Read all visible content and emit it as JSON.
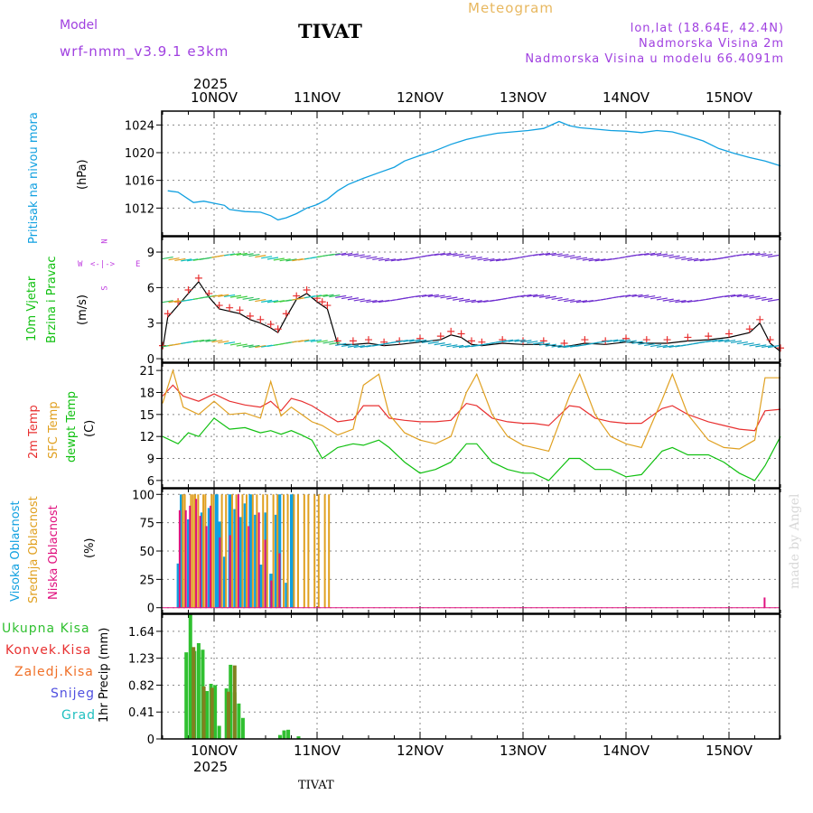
{
  "header": {
    "model_label": "Model",
    "model_name": "wrf-nmm_v3.9.1  e3km",
    "station": "TIVAT",
    "meteogram": "Meteogram",
    "lonlat": "lon,lat (18.64E, 42.4N)",
    "height": "Nadmorska Visina 2m",
    "model_height": "Nadmorska Visina u modelu 66.4091m"
  },
  "footer": {
    "station": "TIVAT",
    "credit": "made by Angel"
  },
  "colors": {
    "pressure": "#10a0e0",
    "wind": "#10c010",
    "temp2m": "#e83030",
    "sfc": "#e0a020",
    "dew": "#10c010",
    "cloud_high": "#10a0e0",
    "cloud_mid": "#e0a020",
    "cloud_low": "#e0107e",
    "precip": "#30c030",
    "precip_conv": "#e83030",
    "frame": "#000000",
    "grid": "#888888"
  },
  "chart_data": [
    {
      "type": "line",
      "id": "pressure",
      "ylabel_lines": [
        "Pritisak na nivou mora"
      ],
      "unit": "(hPa)",
      "ylim": [
        1008,
        1026
      ],
      "yticks": [
        1012,
        1016,
        1020,
        1024
      ],
      "x_days": [
        -0.45,
        -0.35,
        -0.2,
        -0.1,
        0.0,
        0.1,
        0.15,
        0.3,
        0.45,
        0.55,
        0.62,
        0.7,
        0.8,
        0.9,
        1.0,
        1.1,
        1.2,
        1.3,
        1.45,
        1.6,
        1.75,
        1.85,
        2.0,
        2.15,
        2.3,
        2.45,
        2.6,
        2.75,
        2.9,
        3.05,
        3.2,
        3.35,
        3.45,
        3.55,
        3.7,
        3.85,
        4.0,
        4.15,
        4.3,
        4.45,
        4.6,
        4.75,
        4.9,
        5.05,
        5.2,
        5.35,
        5.5
      ],
      "values": [
        1014.5,
        1014.3,
        1012.8,
        1013.0,
        1012.7,
        1012.4,
        1011.8,
        1011.5,
        1011.4,
        1010.9,
        1010.3,
        1010.6,
        1011.2,
        1012.0,
        1012.5,
        1013.3,
        1014.5,
        1015.4,
        1016.3,
        1017.1,
        1017.9,
        1018.8,
        1019.6,
        1020.3,
        1021.2,
        1021.9,
        1022.4,
        1022.8,
        1023.0,
        1023.2,
        1023.5,
        1024.5,
        1023.9,
        1023.6,
        1023.4,
        1023.2,
        1023.1,
        1022.9,
        1023.2,
        1023.0,
        1022.4,
        1021.7,
        1020.6,
        1019.9,
        1019.3,
        1018.8,
        1018.1
      ]
    },
    {
      "type": "line",
      "id": "wind",
      "ylabel_lines": [
        "10m Vjetar",
        "Brzina i Pravac"
      ],
      "unit": "(m/s)",
      "compass": [
        "N",
        "E",
        "S",
        "W"
      ],
      "ylim": [
        -0.3,
        10.3
      ],
      "yticks": [
        0,
        3,
        6,
        9
      ],
      "x_days": [
        -0.5,
        -0.45,
        -0.35,
        -0.25,
        -0.15,
        -0.05,
        0.05,
        0.15,
        0.25,
        0.35,
        0.45,
        0.55,
        0.62,
        0.7,
        0.8,
        0.9,
        1.0,
        1.05,
        1.1,
        1.2,
        1.35,
        1.5,
        1.65,
        1.8,
        2.0,
        2.2,
        2.3,
        2.4,
        2.5,
        2.6,
        2.8,
        3.0,
        3.2,
        3.4,
        3.6,
        3.8,
        4.0,
        4.2,
        4.4,
        4.6,
        4.8,
        5.0,
        5.2,
        5.3,
        5.4,
        5.5
      ],
      "values": [
        0.8,
        3.5,
        4.5,
        5.5,
        6.5,
        5.2,
        4.2,
        4.0,
        3.8,
        3.3,
        3.0,
        2.6,
        2.2,
        3.5,
        5.0,
        5.5,
        4.8,
        4.5,
        4.2,
        1.2,
        1.2,
        1.3,
        1.1,
        1.2,
        1.4,
        1.6,
        2.0,
        1.8,
        1.2,
        1.1,
        1.3,
        1.2,
        1.2,
        1.0,
        1.3,
        1.2,
        1.4,
        1.3,
        1.3,
        1.5,
        1.6,
        1.8,
        2.2,
        3.0,
        1.3,
        0.6
      ]
    },
    {
      "type": "line",
      "id": "temperature",
      "ylabel_lines": [
        "2m Temp",
        "SFC Temp",
        "dewpt Temp"
      ],
      "unit": "(C)",
      "ylim": [
        5,
        22
      ],
      "yticks": [
        6,
        9,
        12,
        15,
        18,
        21
      ],
      "series": [
        {
          "name": "2m Temp",
          "x_days": [
            -0.5,
            -0.4,
            -0.3,
            -0.15,
            0.0,
            0.15,
            0.3,
            0.45,
            0.55,
            0.65,
            0.75,
            0.85,
            0.95,
            1.05,
            1.2,
            1.35,
            1.45,
            1.6,
            1.7,
            1.85,
            2.0,
            2.15,
            2.3,
            2.45,
            2.55,
            2.7,
            2.85,
            3.0,
            3.1,
            3.25,
            3.45,
            3.55,
            3.7,
            3.85,
            4.0,
            4.15,
            4.35,
            4.45,
            4.6,
            4.8,
            4.95,
            5.1,
            5.25,
            5.35,
            5.5
          ],
          "values": [
            17.5,
            19.0,
            17.5,
            16.8,
            17.8,
            16.8,
            16.3,
            16.0,
            16.8,
            15.5,
            17.2,
            16.8,
            16.2,
            15.3,
            14.0,
            14.3,
            16.2,
            16.2,
            14.5,
            14.2,
            14.0,
            14.0,
            14.2,
            16.5,
            16.2,
            14.5,
            14.0,
            13.8,
            13.8,
            13.5,
            16.2,
            16.0,
            14.5,
            14.0,
            13.8,
            13.8,
            15.8,
            16.2,
            15.0,
            14.0,
            13.5,
            13.0,
            12.8,
            15.5,
            15.7
          ]
        },
        {
          "name": "SFC Temp",
          "x_days": [
            -0.5,
            -0.4,
            -0.3,
            -0.15,
            0.0,
            0.15,
            0.3,
            0.45,
            0.55,
            0.65,
            0.75,
            0.85,
            0.95,
            1.05,
            1.2,
            1.35,
            1.45,
            1.6,
            1.7,
            1.85,
            2.0,
            2.15,
            2.3,
            2.45,
            2.55,
            2.7,
            2.85,
            3.0,
            3.1,
            3.25,
            3.45,
            3.55,
            3.7,
            3.85,
            4.0,
            4.15,
            4.35,
            4.45,
            4.6,
            4.8,
            4.95,
            5.1,
            5.25,
            5.35,
            5.5
          ],
          "values": [
            16.5,
            21.0,
            16.0,
            15.0,
            16.8,
            15.0,
            15.2,
            14.5,
            19.5,
            14.8,
            16.0,
            15.0,
            14.0,
            13.5,
            12.2,
            13.0,
            19.0,
            20.5,
            15.0,
            12.5,
            11.5,
            11.0,
            12.0,
            18.0,
            20.5,
            15.0,
            12.0,
            10.8,
            10.5,
            10.0,
            17.5,
            20.5,
            15.0,
            12.0,
            11.0,
            10.5,
            17.0,
            20.5,
            15.0,
            11.5,
            10.5,
            10.3,
            11.5,
            20.0,
            20.0
          ]
        },
        {
          "name": "dewpt Temp",
          "x_days": [
            -0.5,
            -0.35,
            -0.25,
            -0.15,
            0.0,
            0.15,
            0.3,
            0.45,
            0.55,
            0.65,
            0.75,
            0.85,
            0.95,
            1.05,
            1.2,
            1.35,
            1.45,
            1.6,
            1.7,
            1.85,
            2.0,
            2.15,
            2.3,
            2.45,
            2.55,
            2.7,
            2.85,
            3.0,
            3.1,
            3.25,
            3.45,
            3.55,
            3.7,
            3.85,
            4.0,
            4.15,
            4.35,
            4.45,
            4.6,
            4.8,
            4.95,
            5.1,
            5.25,
            5.35,
            5.5
          ],
          "values": [
            12.0,
            11.0,
            12.5,
            12.0,
            14.5,
            13.0,
            13.2,
            12.5,
            12.8,
            12.3,
            12.8,
            12.2,
            11.5,
            9.0,
            10.5,
            11.0,
            10.8,
            11.5,
            10.5,
            8.5,
            7.0,
            7.5,
            8.5,
            11.0,
            11.0,
            8.5,
            7.5,
            7.0,
            7.0,
            6.0,
            9.0,
            9.0,
            7.5,
            7.5,
            6.5,
            6.8,
            10.0,
            10.5,
            9.5,
            9.5,
            8.5,
            7.0,
            6.0,
            8.0,
            12.0
          ]
        }
      ]
    },
    {
      "type": "bar",
      "id": "cloud",
      "ylabel_lines": [
        "Visoka Oblacnost",
        "Srednja Oblacnost",
        "Niska Oblacnost"
      ],
      "unit": "(%)",
      "ylim": [
        -5,
        105
      ],
      "yticks": [
        0,
        25,
        50,
        75,
        100
      ],
      "series": [
        {
          "name": "Visoka",
          "x_days": [
            -0.35,
            -0.32,
            -0.25,
            -0.12,
            -0.05,
            0.02,
            0.05,
            0.1,
            0.15,
            0.2,
            0.25,
            0.3,
            0.35,
            0.4,
            0.45,
            0.5,
            0.55,
            0.6,
            0.63,
            0.7,
            0.75
          ],
          "values": [
            39,
            100,
            78,
            84,
            88,
            100,
            76,
            45,
            100,
            87,
            80,
            92,
            100,
            82,
            38,
            84,
            30,
            82,
            100,
            22,
            100
          ]
        },
        {
          "name": "Srednja",
          "x_days": [
            -0.3,
            -0.28,
            -0.22,
            -0.2,
            -0.18,
            -0.15,
            -0.1,
            -0.08,
            -0.02,
            0.0,
            0.08,
            0.12,
            0.18,
            0.22,
            0.28,
            0.32,
            0.38,
            0.42,
            0.48,
            0.52,
            0.58,
            0.62,
            0.68,
            0.72,
            0.78,
            0.82,
            0.88,
            0.92,
            0.98,
            1.02,
            1.08,
            1.12
          ],
          "values": [
            100,
            100,
            100,
            100,
            100,
            100,
            100,
            100,
            100,
            100,
            100,
            100,
            100,
            100,
            100,
            100,
            100,
            100,
            100,
            100,
            100,
            100,
            100,
            100,
            100,
            100,
            100,
            100,
            100,
            100,
            100,
            100
          ]
        },
        {
          "name": "Niska",
          "x_days": [
            -0.33,
            -0.27,
            -0.23,
            -0.17,
            -0.13,
            -0.07,
            -0.03,
            0.06,
            0.16,
            0.24,
            0.34,
            0.44,
            0.5,
            0.56,
            0.64,
            5.35
          ],
          "values": [
            86,
            86,
            90,
            96,
            81,
            72,
            90,
            62,
            64,
            100,
            72,
            84,
            60,
            24,
            48,
            9
          ]
        }
      ]
    },
    {
      "type": "bar",
      "id": "precip",
      "ylabel_lines": [
        "Ukupna Kisa",
        "Konvek.Kisa",
        "Zaledj.Kisa",
        "Snijeg",
        "Grad"
      ],
      "ylabel_colors": [
        "#30c030",
        "#e83030",
        "#f07028",
        "#5050e0",
        "#20c0c0"
      ],
      "unit": "1hr Precip (mm)",
      "ylim": [
        0,
        1.9
      ],
      "yticks": [
        0,
        0.41,
        0.82,
        1.23,
        1.64
      ],
      "series": [
        {
          "name": "Ukupna Kisa",
          "x_days": [
            -0.27,
            -0.23,
            -0.19,
            -0.15,
            -0.11,
            -0.07,
            -0.03,
            0.01,
            0.05,
            0.12,
            0.16,
            0.2,
            0.24,
            0.28,
            0.64,
            0.68,
            0.72,
            0.82
          ],
          "values": [
            1.32,
            1.91,
            1.34,
            1.46,
            1.36,
            0.73,
            0.84,
            0.82,
            0.2,
            0.77,
            1.13,
            0.71,
            0.54,
            0.32,
            0.06,
            0.13,
            0.14,
            0.04
          ]
        },
        {
          "name": "Konvek.Kisa",
          "x_days": [
            -0.2,
            -0.1,
            -0.02,
            0.14,
            0.2
          ],
          "values": [
            1.4,
            0.8,
            0.78,
            0.72,
            1.12
          ]
        }
      ]
    }
  ],
  "x_axis": {
    "year": "2025",
    "day_labels": [
      "10NOV",
      "11NOV",
      "12NOV",
      "13NOV",
      "14NOV",
      "15NOV"
    ]
  }
}
